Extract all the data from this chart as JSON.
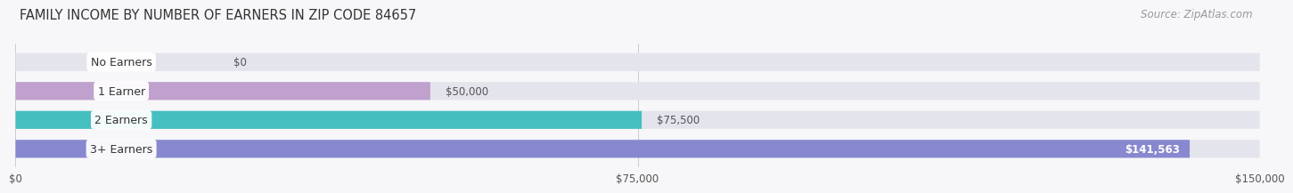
{
  "title": "FAMILY INCOME BY NUMBER OF EARNERS IN ZIP CODE 84657",
  "source": "Source: ZipAtlas.com",
  "categories": [
    "No Earners",
    "1 Earner",
    "2 Earners",
    "3+ Earners"
  ],
  "values": [
    0,
    50000,
    75500,
    141563
  ],
  "value_labels": [
    "$0",
    "$50,000",
    "$75,500",
    "$141,563"
  ],
  "bar_colors": [
    "#a8c8e8",
    "#c0a0cc",
    "#45bfbf",
    "#8888d0"
  ],
  "bar_bg_color": "#e4e4ec",
  "xlim": [
    0,
    150000
  ],
  "xticks": [
    0,
    75000,
    150000
  ],
  "xtick_labels": [
    "$0",
    "$75,000",
    "$150,000"
  ],
  "background_color": "#f7f7fa",
  "title_fontsize": 10.5,
  "source_fontsize": 8.5,
  "value_label_fontsize": 8.5,
  "category_fontsize": 9,
  "bar_height": 0.62
}
